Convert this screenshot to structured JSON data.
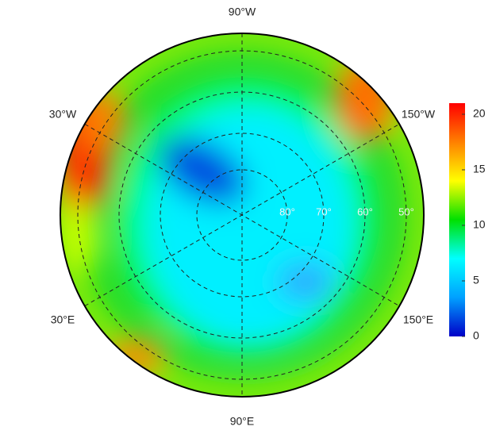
{
  "longitude_labels": [
    "90°W",
    "30°W",
    "150°W",
    "30°E",
    "150°E",
    "90°E"
  ],
  "latitude_labels": [
    "80°",
    "70°",
    "60°",
    "50°"
  ],
  "colorbar": {
    "lim": [
      0,
      21
    ],
    "ticks": [
      0,
      5,
      10,
      15,
      20
    ],
    "colors": [
      "#0000c8",
      "#00a0ff",
      "#00ffff",
      "#00e000",
      "#ffff00",
      "#ff8000",
      "#ff0000"
    ]
  }
}
